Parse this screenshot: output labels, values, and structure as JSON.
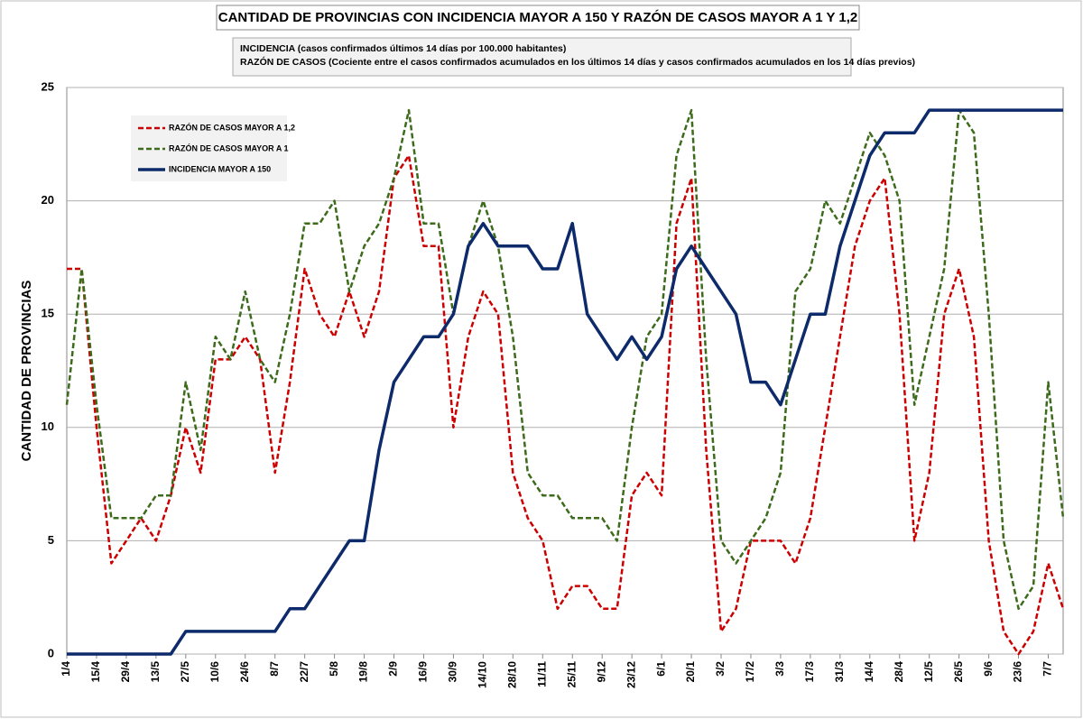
{
  "chart_data": {
    "type": "line",
    "title": "CANTIDAD DE PROVINCIAS CON INCIDENCIA MAYOR A 150 Y RAZÓN DE CASOS MAYOR A 1 Y 1,2",
    "subtitle": [
      "INCIDENCIA (casos confirmados últimos 14 días por 100.000  habitantes)",
      "RAZÓN DE CASOS (Cociente entre el casos confirmados acumulados en los últimos 14 días y casos confirmados acumulados en los 14 días previos)"
    ],
    "y_label": "CANTIDAD DE PROVINCIAS",
    "categories": [
      "1/4",
      null,
      "15/4",
      null,
      "29/4",
      null,
      "13/5",
      null,
      "27/5",
      null,
      "10/6",
      null,
      "24/6",
      null,
      "8/7",
      null,
      "22/7",
      null,
      "5/8",
      null,
      "19/8",
      null,
      "2/9",
      null,
      "16/9",
      null,
      "30/9",
      null,
      "14/10",
      null,
      "28/10",
      null,
      "11/11",
      null,
      "25/11",
      null,
      "9/12",
      null,
      "23/12",
      null,
      "6/1",
      null,
      "20/1",
      null,
      "3/2",
      null,
      "17/2",
      null,
      "3/3",
      null,
      "17/3",
      null,
      "31/3",
      null,
      "14/4",
      null,
      "28/4",
      null,
      "12/5",
      null,
      "26/5",
      null,
      "9/6",
      null,
      "23/6",
      null,
      "7/7",
      null
    ],
    "series": [
      {
        "name": "RAZÓN DE CASOS MAYOR A 1,2",
        "color": "#cc0000",
        "dashed": true,
        "values": [
          17,
          17,
          10,
          4,
          5,
          6,
          5,
          7,
          10,
          8,
          13,
          13,
          14,
          13,
          8,
          12,
          17,
          15,
          14,
          16,
          14,
          16,
          21,
          22,
          18,
          18,
          10,
          14,
          16,
          15,
          8,
          6,
          5,
          2,
          3,
          3,
          2,
          2,
          7,
          8,
          7,
          19,
          21,
          9,
          1,
          2,
          5,
          5,
          5,
          4,
          6,
          10,
          14,
          18,
          20,
          21,
          15,
          5,
          8,
          15,
          17,
          14,
          5,
          1,
          0,
          1,
          4,
          2
        ]
      },
      {
        "name": "RAZÓN DE CASOS MAYOR A 1",
        "color": "#3d6b1c",
        "dashed": true,
        "values": [
          11,
          17,
          11,
          6,
          6,
          6,
          7,
          7,
          12,
          9,
          14,
          13,
          16,
          13,
          12,
          15,
          19,
          19,
          20,
          16,
          18,
          19,
          21,
          24,
          19,
          19,
          15,
          18,
          20,
          18,
          14,
          8,
          7,
          7,
          6,
          6,
          6,
          5,
          10,
          14,
          15,
          22,
          24,
          13,
          5,
          4,
          5,
          6,
          8,
          16,
          17,
          20,
          19,
          21,
          23,
          22,
          20,
          11,
          14,
          17,
          24,
          23,
          15,
          5,
          2,
          3,
          12,
          6
        ]
      },
      {
        "name": "INCIDENCIA MAYOR A 150",
        "color": "#0d2a6b",
        "dashed": false,
        "values": [
          0,
          0,
          0,
          0,
          0,
          0,
          0,
          0,
          1,
          1,
          1,
          1,
          1,
          1,
          1,
          2,
          2,
          3,
          4,
          5,
          5,
          9,
          12,
          13,
          14,
          14,
          15,
          18,
          19,
          18,
          18,
          18,
          17,
          17,
          19,
          15,
          14,
          13,
          14,
          13,
          14,
          17,
          18,
          17,
          16,
          15,
          12,
          12,
          11,
          13,
          15,
          15,
          18,
          20,
          22,
          23,
          23,
          23,
          24,
          24,
          24,
          24,
          24,
          24,
          24,
          24,
          24,
          24
        ]
      }
    ],
    "ylim": [
      0,
      25
    ],
    "yticks": [
      0,
      5,
      10,
      15,
      20,
      25
    ],
    "grid": true,
    "legend": "upper left"
  }
}
